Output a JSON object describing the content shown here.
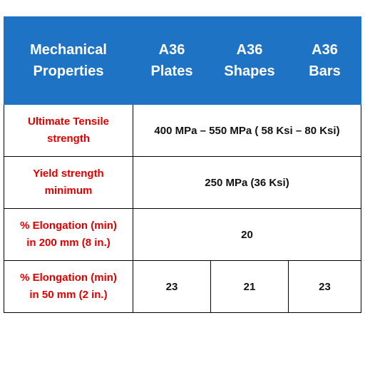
{
  "colors": {
    "header_bg": "#1f73c4",
    "header_text": "#ffffff",
    "label_text": "#e00000",
    "value_text": "#111111",
    "border": "#000000"
  },
  "header": {
    "col0": [
      "Mechanical",
      "Properties"
    ],
    "col1": [
      "A36",
      "Plates"
    ],
    "col2": [
      "A36",
      "Shapes"
    ],
    "col3": [
      "A36",
      "Bars"
    ]
  },
  "rows": [
    {
      "label": [
        "Ultimate Tensile",
        "strength"
      ],
      "value": "400 MPa – 550 MPa ( 58 Ksi – 80 Ksi)"
    },
    {
      "label": [
        "Yield strength",
        "minimum"
      ],
      "value": "250 MPa (36 Ksi)"
    },
    {
      "label": [
        "% Elongation (min)",
        "in 200 mm (8 in.)"
      ],
      "value": "20"
    },
    {
      "label": [
        "% Elongation (min)",
        "in 50 mm (2 in.)"
      ],
      "plates": "23",
      "shapes": "21",
      "bars": "23"
    }
  ]
}
